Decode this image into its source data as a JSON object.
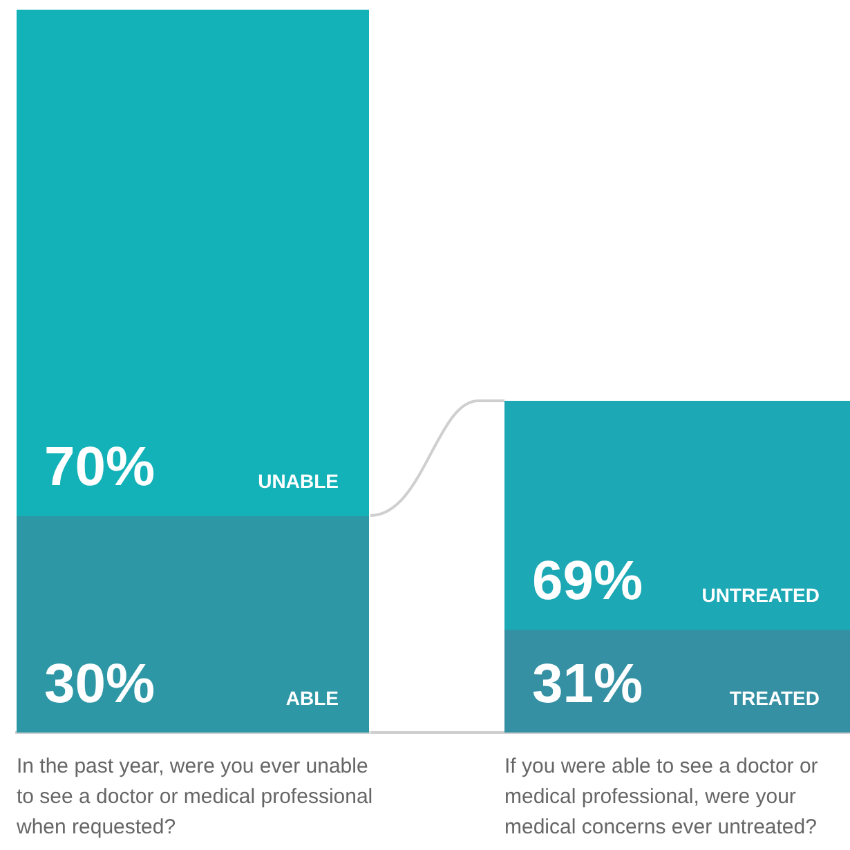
{
  "chart_data": [
    {
      "type": "bar",
      "stacked": true,
      "categories": [
        null
      ],
      "xlabel": "In the past year, were you ever unable to see a doctor or medical professional when requested?",
      "tick_labels": false,
      "grid": false,
      "series": [
        {
          "name": "ABLE",
          "color": "#2e97a6",
          "values": [
            30
          ],
          "value_labels": [
            "30%"
          ]
        },
        {
          "name": "UNABLE",
          "color": "#13b2b8",
          "values": [
            70
          ],
          "value_labels": [
            "70%"
          ]
        }
      ]
    },
    {
      "type": "bar",
      "stacked": true,
      "categories": [
        null
      ],
      "xlabel": "If you were able to see a doctor or medical professional, were your medical concerns ever untreated?",
      "tick_labels": false,
      "grid": false,
      "series": [
        {
          "name": "TREATED",
          "color": "#3590a3",
          "values": [
            31
          ],
          "value_labels": [
            "31%"
          ]
        },
        {
          "name": "UNTREATED",
          "color": "#1ca8b4",
          "values": [
            69
          ],
          "value_labels": [
            "69%"
          ]
        }
      ]
    }
  ]
}
